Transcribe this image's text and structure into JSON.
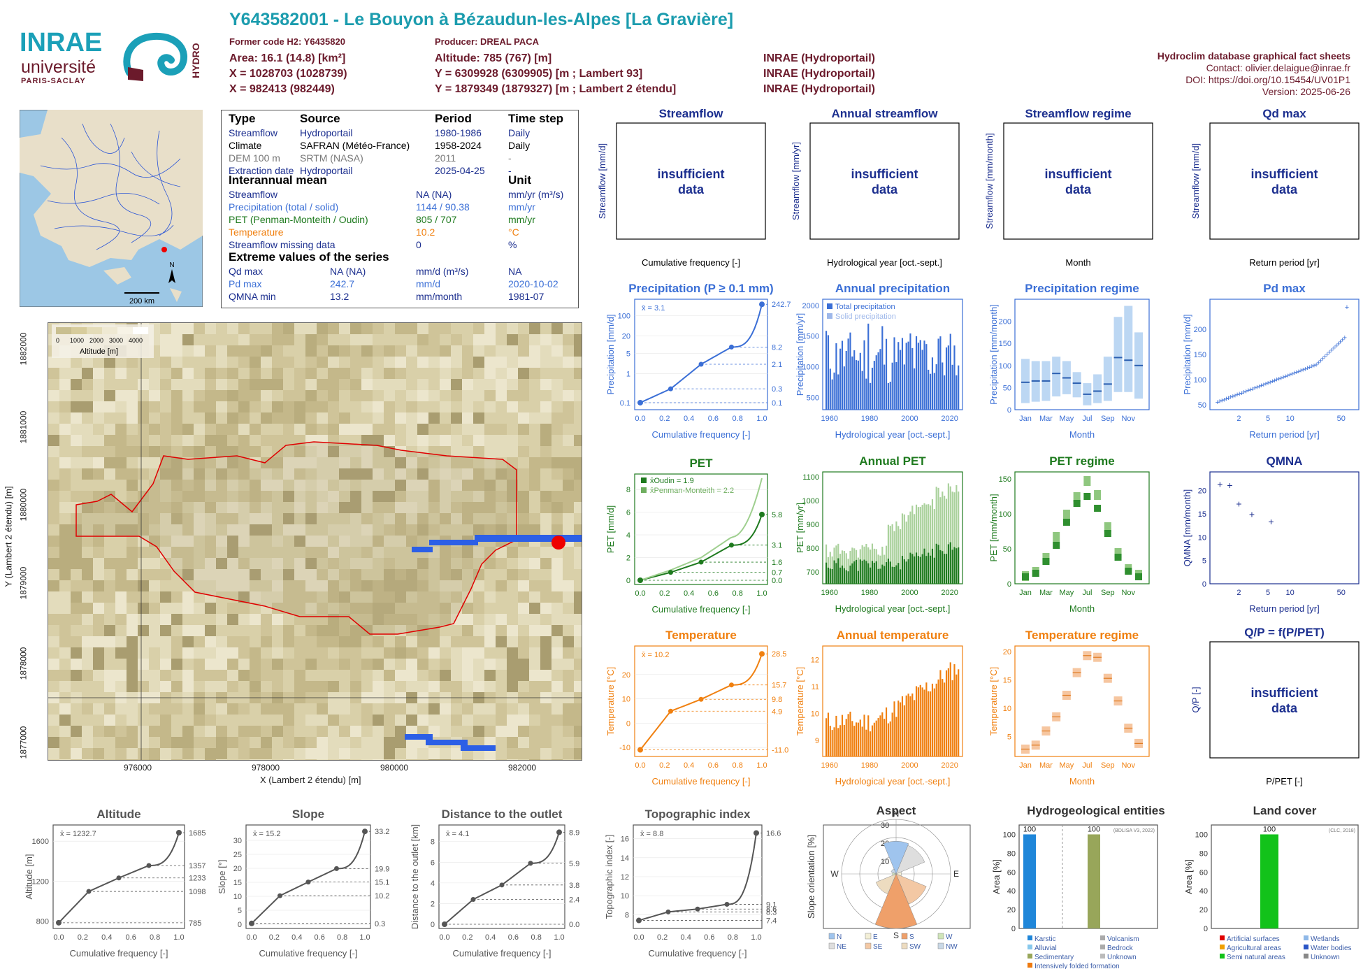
{
  "header": {
    "title": "Y643582001 - Le Bouyon à Bézaudun-les-Alpes [La Gravière]",
    "former_code": "Former code H2: Y6435820",
    "producer": "Producer: DREAL PACA",
    "area": "Area: 16.1 (14.8) [km²]",
    "x93": "X = 1028703 (1028739)",
    "x2e": "X = 982413 (982449)",
    "altitude": "Altitude: 785 (767) [m]",
    "y93": "Y = 6309928 (6309905) [m ; Lambert 93]",
    "y2e": "Y = 1879349 (1879327) [m ; Lambert 2 étendu]",
    "src1": "INRAE (Hydroportail)",
    "src2": "INRAE (Hydroportail)",
    "src3": "INRAE (Hydroportail)",
    "db_title": "Hydroclim database graphical fact sheets",
    "contact": "Contact: olivier.delaigue@inrae.fr",
    "doi": "DOI: https://doi.org/10.15454/UV01P1",
    "version": "Version: 2025-06-26"
  },
  "logos": {
    "inrae": "INRAE",
    "univ": "université",
    "ps": "PARIS-SACLAY",
    "hydro": "HYDRO"
  },
  "map_small": {
    "scale": "200 km",
    "north": "N"
  },
  "info": {
    "h_type": "Type",
    "h_source": "Source",
    "h_period": "Period",
    "h_step": "Time step",
    "rows": [
      {
        "type": "Streamflow",
        "source": "Hydroportail",
        "period": "1980-1986",
        "step": "Daily",
        "color": "#1c2f8f"
      },
      {
        "type": "Climate",
        "source": "SAFRAN (Météo-France)",
        "period": "1958-2024",
        "step": "Daily",
        "color": "#000000"
      },
      {
        "type": "DEM 100 m",
        "source": "SRTM (NASA)",
        "period": "2011",
        "step": "-",
        "color": "#777777"
      },
      {
        "type": "Extraction date",
        "source": "Hydroportail",
        "period": "2025-04-25",
        "step": "-",
        "color": "#1c2f8f"
      }
    ],
    "h_mean": "Interannual mean",
    "h_unit": "Unit",
    "mean_rows": [
      {
        "name": "Streamflow",
        "value": "NA (NA)",
        "unit": "mm/yr (m³/s)",
        "color": "#1c2f8f"
      },
      {
        "name": "Precipitation (total / solid)",
        "value": "1144 / 90.38",
        "unit": "mm/yr",
        "color": "#3b6fd6"
      },
      {
        "name": "PET (Penman-Monteith / Oudin)",
        "value": "805 / 707",
        "unit": "mm/yr",
        "color": "#1e7a1e"
      },
      {
        "name": "Temperature",
        "value": "10.2",
        "unit": "°C",
        "color": "#f08010"
      },
      {
        "name": "Streamflow missing data",
        "value": "0",
        "unit": "%",
        "color": "#1c2f8f"
      }
    ],
    "h_extreme": "Extreme values of the series",
    "ext_rows": [
      {
        "name": "Qd max",
        "value": "NA (NA)",
        "unit": "mm/d (m³/s)",
        "date": "NA",
        "color": "#1c2f8f"
      },
      {
        "name": "Pd max",
        "value": "242.7",
        "unit": "mm/d",
        "date": "2020-10-02",
        "color": "#3b6fd6"
      },
      {
        "name": "QMNA min",
        "value": "13.2",
        "unit": "mm/month",
        "date": "1981-07",
        "color": "#1c2f8f"
      }
    ]
  },
  "bigmap": {
    "legend_title": "Altitude [m]",
    "legend_ticks": [
      "0",
      "1000",
      "2000",
      "3000",
      "4000"
    ],
    "ylabel": "Y (Lambert 2 étendu) [m]",
    "xlabel": "X (Lambert 2 étendu) [m]",
    "yticks": [
      "1882000",
      "1881000",
      "1880000",
      "1879000",
      "1878000",
      "1877000"
    ],
    "xticks": [
      "976000",
      "978000",
      "980000",
      "982000"
    ]
  },
  "insufficient": "insufficient data",
  "colors": {
    "streamflow": "#1c2f8f",
    "precip": "#3b6fd6",
    "pet": "#1e7a1e",
    "temp": "#f08010",
    "grey": "#555555"
  },
  "panels": {
    "streamflow": {
      "title": "Streamflow",
      "ylabel": "Streamflow [mm/d]",
      "xlabel": "Cumulative frequency [-]"
    },
    "annual_streamflow": {
      "title": "Annual streamflow",
      "ylabel": "Streamflow [mm/yr]",
      "xlabel": "Hydrological year [oct.-sept.]"
    },
    "streamflow_regime": {
      "title": "Streamflow regime",
      "ylabel": "Streamflow [mm/month]",
      "xlabel": "Month"
    },
    "qd_max": {
      "title": "Qd max",
      "ylabel": "Streamflow [mm/d]",
      "xlabel": "Return period [yr]"
    },
    "qp": {
      "title": "Q/P = f(P/PET)",
      "ylabel": "Q/P [-]",
      "xlabel": "P/PET [-]"
    },
    "precip": {
      "title": "Precipitation (P ≥ 0.1 mm)",
      "ylabel": "Precipitation [mm/d]",
      "xlabel": "Cumulative frequency [-]",
      "mean": "x̄ = 3.1"
    },
    "annual_precip": {
      "title": "Annual precipitation",
      "ylabel": "Precipitation [mm/yr]",
      "xlabel": "Hydrological year [oct.-sept.]",
      "leg1": "Total precipitation",
      "leg2": "Solid precipitation"
    },
    "precip_regime": {
      "title": "Precipitation regime",
      "ylabel": "Precipitation [mm/month]",
      "xlabel": "Month"
    },
    "pd_max": {
      "title": "Pd max",
      "ylabel": "Precipitation [mm/d]",
      "xlabel": "Return period [yr]"
    },
    "pet": {
      "title": "PET",
      "ylabel": "PET [mm/d]",
      "xlabel": "Cumulative frequency [-]",
      "leg1": "x̄Oudin = 1.9",
      "leg2": "x̄Penman-Monteith = 2.2"
    },
    "annual_pet": {
      "title": "Annual PET",
      "ylabel": "PET [mm/yr]",
      "xlabel": "Hydrological year [oct.-sept.]"
    },
    "pet_regime": {
      "title": "PET regime",
      "ylabel": "PET [mm/month]",
      "xlabel": "Month"
    },
    "qmna": {
      "title": "QMNA",
      "ylabel": "QMNA [mm/month]",
      "xlabel": "Return period [yr]"
    },
    "temp": {
      "title": "Temperature",
      "ylabel": "Temperature [°C]",
      "xlabel": "Cumulative frequency [-]",
      "mean": "x̄ = 10.2"
    },
    "annual_temp": {
      "title": "Annual temperature",
      "ylabel": "Temperature [°C]",
      "xlabel": "Hydrological year [oct.-sept.]"
    },
    "temp_regime": {
      "title": "Temperature regime",
      "ylabel": "Temperature [°C]",
      "xlabel": "Month"
    },
    "altitude": {
      "title": "Altitude",
      "ylabel": "Altitude [m]",
      "xlabel": "Cumulative frequency [-]",
      "mean": "x̄ = 1232.7"
    },
    "slope": {
      "title": "Slope",
      "ylabel": "Slope [°]",
      "xlabel": "Cumulative frequency [-]",
      "mean": "x̄ = 15.2"
    },
    "distance": {
      "title": "Distance to the outlet",
      "ylabel": "Distance to the outlet [km]",
      "xlabel": "Cumulative frequency [-]",
      "mean": "x̄ = 4.1"
    },
    "topo": {
      "title": "Topographic index",
      "ylabel": "Topographic index [-]",
      "xlabel": "Cumulative frequency [-]",
      "mean": "x̄ = 8.8"
    },
    "aspect": {
      "title": "Aspect",
      "ylabel": "Slope orientation [%]"
    },
    "hydrogeo": {
      "title": "Hydrogeological entities",
      "ylabel": "Area [%]",
      "note": "(BDLISA V3, 2022)"
    },
    "landcover": {
      "title": "Land cover",
      "ylabel": "Area [%]",
      "note": "(CLC, 2018)"
    }
  },
  "chart_data": [
    {
      "id": "precip",
      "type": "line",
      "x": [
        0,
        0.25,
        0.5,
        0.75,
        1
      ],
      "y": [
        0.1,
        0.3,
        2.1,
        8.2,
        242.7
      ],
      "right_labels": [
        "242.7",
        "8.2",
        "2.1",
        "0.3",
        "0.1"
      ],
      "yticks": [
        "0.1",
        "1",
        "5",
        "20",
        "100"
      ],
      "xticks": [
        "0.0",
        "0.2",
        "0.4",
        "0.6",
        "0.8",
        "1.0"
      ]
    },
    {
      "id": "annual_precip",
      "type": "bar",
      "x_range": [
        1958,
        2024
      ],
      "xticks": [
        "1960",
        "1980",
        "2000",
        "2020"
      ],
      "yticks": [
        "500",
        "1000",
        "1500",
        "2000"
      ],
      "ylim": [
        300,
        2100
      ]
    },
    {
      "id": "precip_regime",
      "type": "box",
      "categories": [
        "Jan",
        "Feb",
        "Mar",
        "Apr",
        "May",
        "Jun",
        "Jul",
        "Aug",
        "Sep",
        "Oct",
        "Nov",
        "Dec"
      ],
      "xticks": [
        "Jan",
        "Mar",
        "May",
        "Jul",
        "Sep",
        "Nov"
      ],
      "median": [
        62,
        65,
        65,
        82,
        72,
        60,
        35,
        42,
        58,
        118,
        112,
        100
      ],
      "q1": [
        15,
        18,
        20,
        30,
        35,
        28,
        10,
        15,
        20,
        40,
        40,
        25
      ],
      "q3": [
        115,
        110,
        110,
        120,
        110,
        85,
        60,
        80,
        120,
        210,
        235,
        175
      ],
      "yticks": [
        "0",
        "50",
        "100",
        "150",
        "200"
      ],
      "ylim": [
        0,
        250
      ]
    },
    {
      "id": "pd_max",
      "type": "scatter",
      "xticks": [
        "2",
        "5",
        "10",
        "50"
      ],
      "yticks": [
        "50",
        "100",
        "150",
        "200"
      ],
      "ylim": [
        40,
        260
      ]
    },
    {
      "id": "pet",
      "type": "line",
      "x": [
        0,
        0.25,
        0.5,
        0.75,
        1
      ],
      "y": [
        0.0,
        0.7,
        1.6,
        3.1,
        5.8
      ],
      "right_labels": [
        "5.8",
        "3.1",
        "1.6",
        "0.7",
        "0.0"
      ],
      "yticks": [
        "0",
        "2",
        "4",
        "6",
        "8"
      ],
      "xticks": [
        "0.0",
        "0.2",
        "0.4",
        "0.6",
        "0.8",
        "1.0"
      ],
      "ylim": [
        0,
        9
      ]
    },
    {
      "id": "annual_pet",
      "type": "bar",
      "xticks": [
        "1960",
        "1980",
        "2000",
        "2020"
      ],
      "yticks": [
        "700",
        "800",
        "900",
        "1000",
        "1100"
      ],
      "ylim": [
        650,
        1120
      ]
    },
    {
      "id": "pet_regime",
      "type": "box",
      "categories": [
        "Jan",
        "Feb",
        "Mar",
        "Apr",
        "May",
        "Jun",
        "Jul",
        "Aug",
        "Sep",
        "Oct",
        "Nov",
        "Dec"
      ],
      "xticks": [
        "Jan",
        "Mar",
        "May",
        "Jul",
        "Sep",
        "Nov"
      ],
      "oudin": [
        10,
        15,
        32,
        55,
        88,
        115,
        125,
        108,
        72,
        38,
        18,
        10
      ],
      "pm": [
        12,
        18,
        38,
        68,
        100,
        125,
        148,
        128,
        82,
        45,
        22,
        14
      ],
      "yticks": [
        "0",
        "50",
        "100",
        "150"
      ],
      "ylim": [
        0,
        160
      ]
    },
    {
      "id": "qmna",
      "type": "scatter",
      "x": [
        1.1,
        1.5,
        2,
        3,
        5.5
      ],
      "y": [
        21.2,
        21,
        17,
        14.8,
        13.2
      ],
      "xticks": [
        "2",
        "5",
        "10",
        "50"
      ],
      "yticks": [
        "0",
        "5",
        "10",
        "15",
        "20"
      ],
      "ylim": [
        0,
        24
      ]
    },
    {
      "id": "temp",
      "type": "line",
      "x": [
        0,
        0.25,
        0.5,
        0.75,
        1
      ],
      "y": [
        -11.0,
        4.9,
        9.8,
        15.7,
        28.5
      ],
      "right_labels": [
        "28.5",
        "15.7",
        "9.8",
        "4.9",
        "-11.0"
      ],
      "yticks": [
        "-10",
        "0",
        "10",
        "20"
      ],
      "xticks": [
        "0.0",
        "0.2",
        "0.4",
        "0.6",
        "0.8",
        "1.0"
      ],
      "ylim": [
        -12,
        30
      ]
    },
    {
      "id": "annual_temp",
      "type": "bar",
      "xticks": [
        "1960",
        "1980",
        "2000",
        "2020"
      ],
      "yticks": [
        "9",
        "10",
        "11",
        "12"
      ],
      "ylim": [
        8.4,
        12.5
      ]
    },
    {
      "id": "temp_regime",
      "type": "box",
      "categories": [
        "Jan",
        "Feb",
        "Mar",
        "Apr",
        "May",
        "Jun",
        "Jul",
        "Aug",
        "Sep",
        "Oct",
        "Nov",
        "Dec"
      ],
      "xticks": [
        "Jan",
        "Mar",
        "May",
        "Jul",
        "Sep",
        "Nov"
      ],
      "median": [
        2.8,
        3.5,
        6,
        8.5,
        12.3,
        16.3,
        19.3,
        19,
        15.3,
        11.3,
        6.5,
        3.8
      ],
      "yticks": [
        "5",
        "10",
        "15",
        "20"
      ],
      "ylim": [
        1.5,
        21
      ]
    },
    {
      "id": "altitude",
      "type": "line",
      "x": [
        0,
        0.25,
        0.5,
        0.75,
        1
      ],
      "y": [
        785,
        1098,
        1233,
        1357,
        1685
      ],
      "right_labels": [
        "1685",
        "1357",
        "1233",
        "1098",
        "785"
      ],
      "yticks": [
        "800",
        "1200",
        "1600"
      ],
      "xticks": [
        "0.0",
        "0.2",
        "0.4",
        "0.6",
        "0.8",
        "1.0"
      ],
      "ylim": [
        770,
        1720
      ]
    },
    {
      "id": "slope",
      "type": "line",
      "x": [
        0,
        0.25,
        0.5,
        0.75,
        1
      ],
      "y": [
        0.3,
        10.2,
        15.1,
        19.9,
        33.2
      ],
      "right_labels": [
        "33.2",
        "19.9",
        "15.1",
        "10.2",
        "0.3"
      ],
      "yticks": [
        "0",
        "5",
        "10",
        "15",
        "20",
        "25",
        "30"
      ],
      "xticks": [
        "0.0",
        "0.2",
        "0.4",
        "0.6",
        "0.8",
        "1.0"
      ],
      "ylim": [
        0,
        34
      ]
    },
    {
      "id": "distance",
      "type": "line",
      "x": [
        0,
        0.25,
        0.5,
        0.75,
        1
      ],
      "y": [
        0.0,
        2.4,
        3.8,
        5.9,
        8.9
      ],
      "right_labels": [
        "8.9",
        "5.9",
        "3.8",
        "2.4",
        "0.0"
      ],
      "yticks": [
        "0",
        "2",
        "4",
        "6",
        "8"
      ],
      "xticks": [
        "0.0",
        "0.2",
        "0.4",
        "0.6",
        "0.8",
        "1.0"
      ],
      "ylim": [
        0,
        9.2
      ]
    },
    {
      "id": "topo",
      "type": "line",
      "x": [
        0,
        0.25,
        0.5,
        0.75,
        1
      ],
      "y": [
        7.4,
        8.3,
        8.6,
        9.1,
        16.6
      ],
      "right_labels": [
        "16.6",
        "9.1",
        "8.6",
        "8.3",
        "7.4"
      ],
      "yticks": [
        "8",
        "10",
        "12",
        "14",
        "16"
      ],
      "xticks": [
        "0.0",
        "0.2",
        "0.4",
        "0.6",
        "0.8",
        "1.0"
      ],
      "ylim": [
        7,
        17
      ]
    },
    {
      "id": "aspect",
      "type": "pie",
      "labels": [
        "N",
        "NE",
        "E",
        "SE",
        "S",
        "SW",
        "W",
        "NW"
      ],
      "values": [
        18,
        17,
        3,
        18,
        30,
        12,
        2,
        3
      ],
      "rings": [
        "10",
        "20",
        "30"
      ],
      "legend": [
        "N",
        "NE",
        "E",
        "SE",
        "S",
        "SW",
        "W",
        "NW"
      ]
    },
    {
      "id": "hydrogeo",
      "type": "bar",
      "categories": [
        "Karstic",
        "Sedimentary"
      ],
      "values": [
        100,
        100
      ],
      "value_labels": [
        "100",
        "100"
      ],
      "legend": [
        "Karstic",
        "Alluvial",
        "Sedimentary",
        "Intensively folded formation",
        "Volcanism",
        "Bedrock",
        "Unknown"
      ],
      "yticks": [
        "0",
        "20",
        "40",
        "60",
        "80",
        "100"
      ],
      "ylim": [
        0,
        110
      ]
    },
    {
      "id": "landcover",
      "type": "bar",
      "categories": [
        "Semi natural areas"
      ],
      "values": [
        100
      ],
      "value_labels": [
        "100"
      ],
      "legend": [
        "Artificial surfaces",
        "Agricultural areas",
        "Semi natural areas",
        "Wetlands",
        "Water bodies",
        "Unknown"
      ],
      "yticks": [
        "0",
        "20",
        "40",
        "60",
        "80",
        "100"
      ],
      "ylim": [
        0,
        110
      ]
    }
  ]
}
